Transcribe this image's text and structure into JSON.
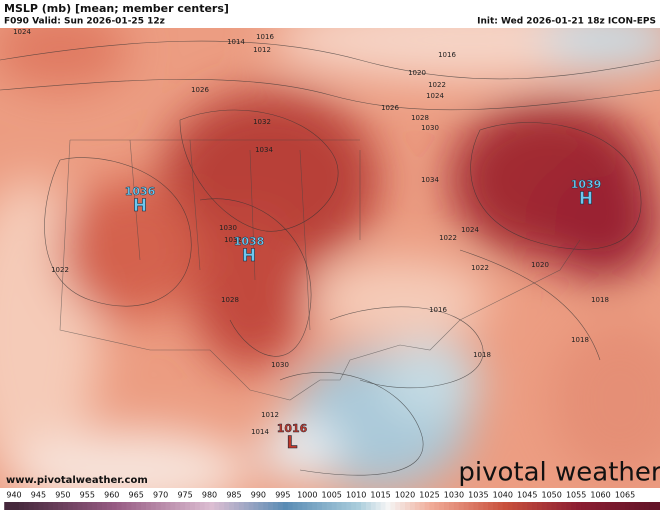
{
  "header": {
    "title": "MSLP (mb) [mean; member centers]",
    "valid": "F090 Valid: Sun 2026-01-25 12z",
    "init": "Init: Wed 2026-01-21 18z ICON-EPS"
  },
  "centers": [
    {
      "symbol": "H",
      "value": 1036
    },
    {
      "symbol": "H",
      "value": 1038
    },
    {
      "symbol": "H",
      "value": 1039
    },
    {
      "symbol": "L",
      "value": 1016
    }
  ],
  "isobar_labels": [
    1024,
    1016,
    1012,
    1014,
    1016,
    1020,
    1022,
    1024,
    1026,
    1028,
    1030,
    1032,
    1034,
    1026,
    1022,
    1028,
    1030,
    1024,
    1022,
    1016,
    1018,
    1018,
    1014,
    1012,
    1030,
    1032,
    1034,
    1022,
    1020,
    1018
  ],
  "colorbar": {
    "ticks": [
      940,
      945,
      950,
      955,
      960,
      965,
      970,
      975,
      980,
      985,
      990,
      995,
      1000,
      1005,
      1010,
      1015,
      1020,
      1025,
      1030,
      1035,
      1040,
      1045,
      1050,
      1055,
      1060,
      1065
    ]
  },
  "footer": {
    "url": "www.pivotalweather.com",
    "logo": "pivotal weather"
  }
}
